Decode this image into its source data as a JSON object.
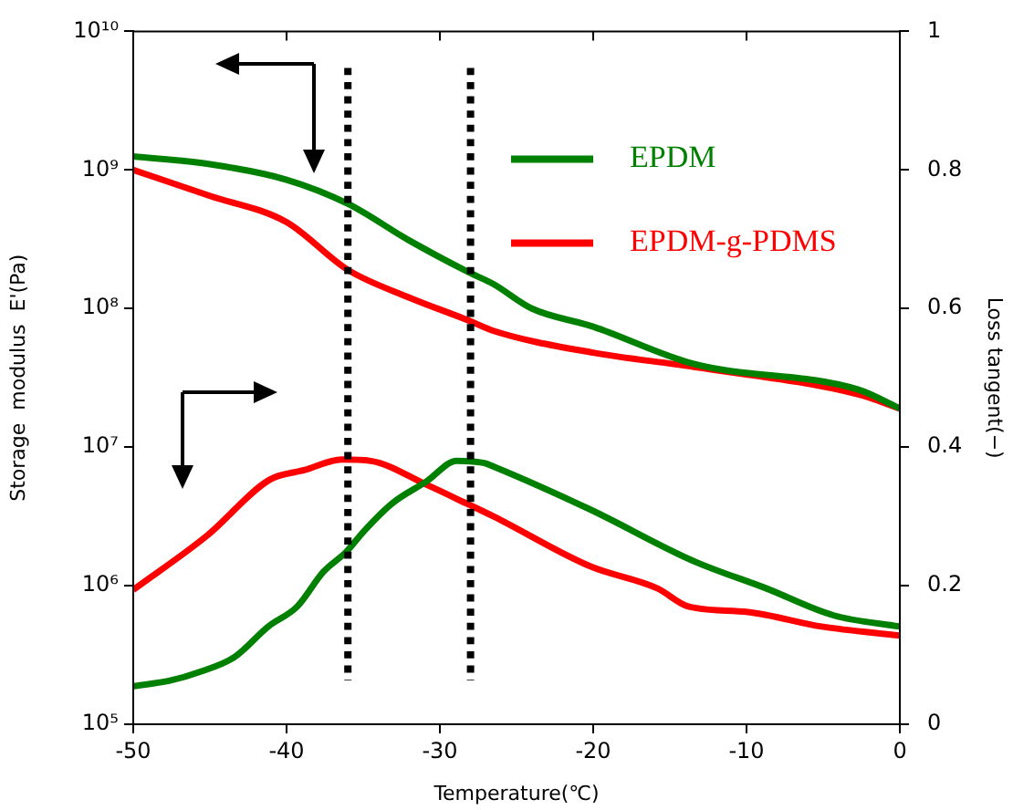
{
  "chart_data": {
    "type": "line",
    "xlabel": "Temperature(℃)",
    "ylabel": "Storage  modulus  E'(Pa)",
    "y2label": "Loss tangent(−)",
    "xlim": [
      -50,
      0
    ],
    "xticks": [
      -50,
      -40,
      -30,
      -20,
      -10,
      0
    ],
    "ylim": [
      100000,
      10000000000
    ],
    "yticks": [
      {
        "value": 100000,
        "label": "10⁵"
      },
      {
        "value": 1000000,
        "label": "10⁶"
      },
      {
        "value": 10000000,
        "label": "10⁷"
      },
      {
        "value": 100000000,
        "label": "10⁸"
      },
      {
        "value": 1000000000,
        "label": "10⁹"
      },
      {
        "value": 10000000000,
        "label": "10¹⁰"
      }
    ],
    "y2lim": [
      0,
      1
    ],
    "y2ticks": [
      0,
      0.2,
      0.4,
      0.6,
      0.8,
      1
    ],
    "log": "y",
    "grid": false,
    "legend": "top right",
    "marker": "none",
    "line_style": "solid",
    "ref_lines": [
      {
        "axis": "x",
        "value": -36,
        "color": "#000000",
        "line_style": "dotted"
      },
      {
        "axis": "x",
        "value": -28,
        "color": "#000000",
        "line_style": "dotted"
      }
    ],
    "series": [
      {
        "name": "EPDM",
        "color": "#008000",
        "x": [
          -50,
          -45,
          -40,
          -36,
          -32,
          -28,
          -26.5,
          -24,
          -20,
          -13.5,
          -2.7,
          0
        ],
        "values": [
          1250000000,
          1100000000,
          850000000,
          570000000,
          310000000,
          180000000,
          150000000,
          100000000,
          74000000,
          40000000,
          26000000,
          19000000
        ]
      },
      {
        "name": "EPDM-g-PDMS",
        "color": "#ff0000",
        "x": [
          -50,
          -45,
          -40,
          -36,
          -32,
          -28,
          -26.5,
          -20,
          -13.5,
          -2.7,
          0
        ],
        "values": [
          1000000000,
          650000000,
          420000000,
          190000000,
          120000000,
          81000000,
          69000000,
          48000000,
          38000000,
          24000000,
          19000000
        ]
      },
      {
        "color": "#008000",
        "axis": "y2",
        "x": [
          -50,
          -47.6,
          -45.6,
          -43.4,
          -41.2,
          -39.3,
          -37.6,
          -36.1,
          -34.9,
          -33.1,
          -30.9,
          -28.9,
          -27.1,
          -26.5,
          -20.2,
          -13.5,
          -8.7,
          -4.3,
          0
        ],
        "values": [
          0.055,
          0.063,
          0.076,
          0.097,
          0.141,
          0.17,
          0.22,
          0.249,
          0.28,
          0.319,
          0.35,
          0.38,
          0.377,
          0.372,
          0.31,
          0.236,
          0.196,
          0.157,
          0.141
        ]
      },
      {
        "color": "#ff0000",
        "axis": "y2",
        "x": [
          -50,
          -45.2,
          -41.1,
          -38.8,
          -36.4,
          -34.5,
          -30.9,
          -28.3,
          -26.5,
          -20.2,
          -15.8,
          -13.8,
          -9.9,
          -5.1,
          0
        ],
        "values": [
          0.194,
          0.272,
          0.353,
          0.367,
          0.382,
          0.38,
          0.346,
          0.319,
          0.3,
          0.228,
          0.196,
          0.17,
          0.162,
          0.141,
          0.128
        ]
      }
    ]
  }
}
